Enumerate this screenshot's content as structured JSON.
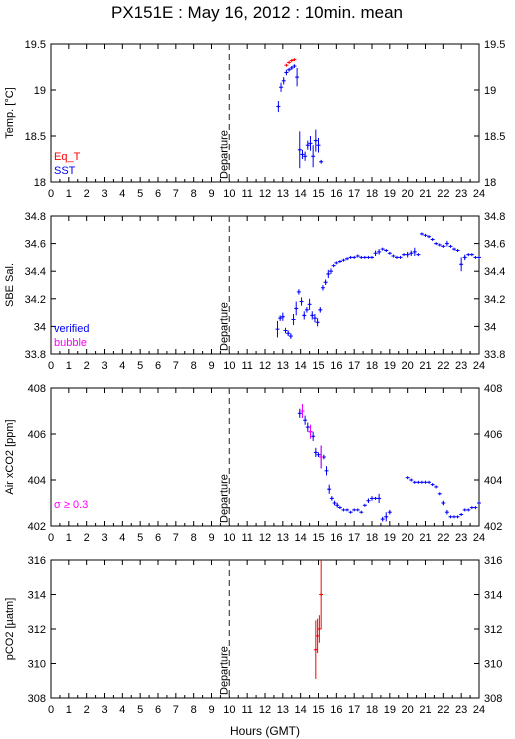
{
  "title": "PX151E : May 16, 2012 : 10min. mean",
  "xlabel": "Hours (GMT)",
  "colors": {
    "sst": "#0000ff",
    "eqt": "#ff0000",
    "sal": "#0000ff",
    "co2": "#ff00ff",
    "pco2": "#ff0000",
    "bubble": "#ff00ff",
    "axis": "#000000"
  },
  "chart_data": [
    {
      "type": "scatter",
      "ylabel": "Temp. [°C]",
      "xlim": [
        0,
        24
      ],
      "ylim": [
        18,
        19.5
      ],
      "x_ticks": [
        "0",
        "1",
        "2",
        "3",
        "4",
        "5",
        "6",
        "7",
        "8",
        "9",
        "10",
        "11",
        "12",
        "13",
        "14",
        "15",
        "16",
        "17",
        "18",
        "19",
        "20",
        "21",
        "22",
        "23",
        "24"
      ],
      "y_ticks": [
        "18",
        "18.5",
        "19",
        "19.5"
      ],
      "departure_hour": 10,
      "departure_label": "Departure",
      "legend": [
        "Eq_T",
        "SST"
      ],
      "series": [
        {
          "name": "Eq_T",
          "color": "#ff0000",
          "x": [
            13.2,
            13.35,
            13.5,
            13.65
          ],
          "y": [
            19.27,
            19.3,
            19.32,
            19.33
          ],
          "yerr": [
            0,
            0,
            0,
            0
          ]
        },
        {
          "name": "SST",
          "color": "#0000ff",
          "x": [
            12.75,
            12.9,
            13.05,
            13.2,
            13.35,
            13.5,
            13.65,
            13.8,
            13.95,
            14.1,
            14.25,
            14.4,
            14.55,
            14.7,
            14.85,
            15.0,
            15.15
          ],
          "y": [
            18.82,
            19.03,
            19.1,
            19.19,
            19.22,
            19.24,
            19.26,
            19.14,
            18.35,
            18.3,
            18.28,
            18.4,
            18.42,
            18.28,
            18.45,
            18.4,
            18.22
          ],
          "yerr": [
            0.06,
            0.05,
            0.04,
            0.03,
            0.02,
            0.02,
            0.02,
            0.1,
            0.2,
            0.05,
            0.05,
            0.05,
            0.08,
            0.12,
            0.12,
            0.08,
            0.02
          ]
        }
      ]
    },
    {
      "type": "scatter",
      "ylabel": "SBE Sal.",
      "xlim": [
        0,
        24
      ],
      "ylim": [
        33.8,
        34.8
      ],
      "x_ticks": [
        "0",
        "1",
        "2",
        "3",
        "4",
        "5",
        "6",
        "7",
        "8",
        "9",
        "10",
        "11",
        "12",
        "13",
        "14",
        "15",
        "16",
        "17",
        "18",
        "19",
        "20",
        "21",
        "22",
        "23",
        "24"
      ],
      "y_ticks": [
        "33.8",
        "34",
        "34.2",
        "34.4",
        "34.6",
        "34.8"
      ],
      "departure_hour": 10,
      "departure_label": "Departure",
      "legend": [
        "verified",
        "bubble"
      ],
      "series": [
        {
          "name": "verified",
          "color": "#0000ff",
          "x": [
            12.7,
            12.85,
            13.0,
            13.15,
            13.3,
            13.45,
            13.6,
            13.75,
            13.9,
            14.05,
            14.2,
            14.35,
            14.5,
            14.65,
            14.8,
            14.95,
            15.1,
            15.25,
            15.4,
            15.55,
            15.7,
            15.85,
            16.0,
            16.2,
            16.4,
            16.6,
            16.8,
            17.0,
            17.2,
            17.4,
            17.6,
            17.8,
            18.0,
            18.2,
            18.4,
            18.6,
            18.8,
            19.0,
            19.2,
            19.4,
            19.6,
            19.8,
            20.0,
            20.2,
            20.4,
            20.6,
            20.8,
            21.0,
            21.2,
            21.4,
            21.6,
            21.8,
            22.0,
            22.2,
            22.4,
            22.6,
            22.8,
            23.0,
            23.2,
            23.4,
            23.6,
            23.8,
            24.0
          ],
          "y": [
            33.98,
            34.06,
            34.07,
            33.97,
            33.95,
            33.93,
            34.05,
            34.13,
            34.25,
            34.18,
            34.08,
            34.12,
            34.16,
            34.08,
            34.06,
            34.03,
            34.12,
            34.28,
            34.32,
            34.38,
            34.4,
            34.44,
            34.46,
            34.47,
            34.48,
            34.49,
            34.5,
            34.5,
            34.51,
            34.5,
            34.5,
            34.5,
            34.5,
            34.53,
            34.54,
            34.56,
            34.55,
            34.53,
            34.51,
            34.5,
            34.5,
            34.52,
            34.52,
            34.53,
            34.54,
            34.52,
            34.67,
            34.66,
            34.65,
            34.63,
            34.6,
            34.59,
            34.58,
            34.6,
            34.58,
            34.56,
            34.55,
            34.45,
            34.5,
            34.52,
            34.52,
            34.5,
            34.5
          ],
          "yerr": [
            0.06,
            0.02,
            0.03,
            0.02,
            0.02,
            0.02,
            0.04,
            0.05,
            0.02,
            0.03,
            0.03,
            0.02,
            0.04,
            0.03,
            0.03,
            0.03,
            0.02,
            0.02,
            0.02,
            0.03,
            0.02,
            0,
            0,
            0,
            0,
            0,
            0,
            0,
            0,
            0,
            0,
            0,
            0,
            0.02,
            0.02,
            0,
            0,
            0,
            0,
            0,
            0,
            0,
            0.02,
            0.02,
            0.03,
            0,
            0,
            0,
            0,
            0,
            0,
            0,
            0,
            0.02,
            0,
            0,
            0,
            0.05,
            0.02,
            0,
            0,
            0,
            0
          ]
        }
      ]
    },
    {
      "type": "scatter",
      "ylabel": "Air xCO2 [ppm]",
      "xlim": [
        0,
        24
      ],
      "ylim": [
        402,
        408
      ],
      "x_ticks": [
        "0",
        "1",
        "2",
        "3",
        "4",
        "5",
        "6",
        "7",
        "8",
        "9",
        "10",
        "11",
        "12",
        "13",
        "14",
        "15",
        "16",
        "17",
        "18",
        "19",
        "20",
        "21",
        "22",
        "23",
        "24"
      ],
      "y_ticks": [
        "402",
        "404",
        "406",
        "408"
      ],
      "departure_hour": 10,
      "departure_label": "Departure",
      "legend": [
        "σ ≥ 0.3"
      ],
      "series": [
        {
          "name": "CO2",
          "color": "#0000ff",
          "x": [
            13.95,
            14.1,
            14.25,
            14.4,
            14.55,
            14.7,
            14.85,
            15.0,
            15.15,
            15.3,
            15.45,
            15.6,
            15.75,
            15.9,
            16.05,
            16.2,
            16.4,
            16.6,
            16.8,
            17.0,
            17.2,
            17.4,
            17.6,
            17.8,
            18.0,
            18.2,
            18.4,
            18.6,
            18.8,
            19.0,
            20.0,
            20.2,
            20.4,
            20.6,
            20.8,
            21.0,
            21.2,
            21.4,
            21.6,
            21.8,
            22.0,
            22.2,
            22.4,
            22.6,
            22.8,
            23.0,
            23.2,
            23.4,
            23.6,
            23.8,
            24.0
          ],
          "y": [
            406.9,
            407.0,
            406.6,
            406.3,
            406.1,
            405.9,
            405.2,
            405.1,
            405.0,
            405.0,
            404.4,
            403.6,
            403.2,
            403.0,
            402.9,
            402.8,
            402.7,
            402.7,
            402.6,
            402.7,
            402.7,
            402.6,
            402.9,
            403.1,
            403.2,
            403.2,
            403.2,
            402.3,
            402.4,
            402.6,
            404.1,
            404.0,
            403.9,
            403.9,
            403.9,
            403.9,
            403.9,
            403.8,
            403.7,
            403.4,
            403.0,
            402.6,
            402.4,
            402.4,
            402.4,
            402.5,
            402.7,
            402.7,
            402.8,
            402.8,
            403.0
          ],
          "yerr": [
            0.2,
            0.3,
            0.2,
            0.2,
            0.3,
            0.2,
            0.2,
            0.1,
            0.5,
            0.1,
            0.2,
            0.2,
            0.1,
            0.1,
            0.1,
            0,
            0,
            0,
            0,
            0,
            0,
            0,
            0,
            0.1,
            0.1,
            0,
            0.2,
            0.1,
            0.2,
            0.1,
            0,
            0,
            0,
            0,
            0,
            0,
            0,
            0,
            0,
            0,
            0.1,
            0.1,
            0,
            0,
            0,
            0,
            0,
            0,
            0,
            0,
            0
          ]
        },
        {
          "name": "σ ≥ 0.3",
          "color": "#ff00ff",
          "x": [
            14.1,
            14.55,
            15.15
          ],
          "y": [
            407.0,
            406.1,
            405.0
          ],
          "yerr": [
            0.3,
            0.3,
            0.5
          ]
        }
      ]
    },
    {
      "type": "scatter",
      "ylabel": "pCO2 [µatm]",
      "xlim": [
        0,
        24
      ],
      "ylim": [
        308,
        316
      ],
      "x_ticks": [
        "0",
        "1",
        "2",
        "3",
        "4",
        "5",
        "6",
        "7",
        "8",
        "9",
        "10",
        "11",
        "12",
        "13",
        "14",
        "15",
        "16",
        "17",
        "18",
        "19",
        "20",
        "21",
        "22",
        "23",
        "24"
      ],
      "y_ticks": [
        "308",
        "310",
        "312",
        "314",
        "316"
      ],
      "departure_hour": 10,
      "departure_label": "Departure",
      "series": [
        {
          "name": "pCO2",
          "color": "#ff0000",
          "x": [
            14.85,
            14.95,
            15.05,
            15.15
          ],
          "y": [
            310.8,
            311.6,
            312.0,
            314.0
          ],
          "yerr": [
            1.7,
            1.0,
            0.8,
            2.0
          ]
        }
      ]
    }
  ]
}
